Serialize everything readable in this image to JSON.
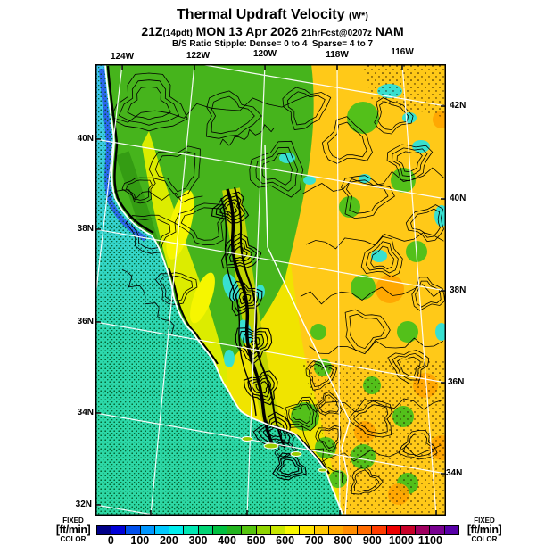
{
  "header": {
    "title": "Thermal Updraft Velocity ",
    "title_units": "(W*)",
    "t2_time": "21Z",
    "t2_local": "(14pdt)",
    "t2_date": " MON 13 Apr 2026 ",
    "t2_fcst": "21hrFcst@0207z",
    "t2_model": " NAM",
    "stipple_note": "B/S Ratio Stipple: Dense= 0 to 4  Sparse= 4 to 7"
  },
  "axes": {
    "top": [
      "124W",
      "122W",
      "120W",
      "118W",
      "116W"
    ],
    "left": [
      "40N",
      "38N",
      "36N",
      "34N",
      "32N"
    ],
    "right": [
      "42N",
      "40N",
      "38N",
      "36N",
      "34N"
    ]
  },
  "colorbar": {
    "label": [
      "FIXED",
      "[ft/min]",
      "COLOR"
    ],
    "ticks": [
      "0",
      "100",
      "200",
      "300",
      "400",
      "500",
      "600",
      "700",
      "800",
      "900",
      "1000",
      "1100"
    ],
    "colors": [
      "#000089",
      "#0000d8",
      "#0050ee",
      "#0096ff",
      "#00c8ff",
      "#00eeee",
      "#00e8b4",
      "#00d474",
      "#00c040",
      "#22b41e",
      "#55c40e",
      "#90d400",
      "#c8e600",
      "#f8f800",
      "#ffe400",
      "#ffc800",
      "#ffaa00",
      "#ff8c00",
      "#ff6a00",
      "#ff3c00",
      "#ee0000",
      "#c80028",
      "#a00060",
      "#780090",
      "#5800a8"
    ]
  },
  "chart_data": {
    "type": "heatmap",
    "title": "Thermal Updraft Velocity (W*)",
    "subtitle": "21Z(14pdt) MON 13 Apr 2026 21hrFcst@0207z NAM",
    "annotation": "B/S Ratio Stipple: Dense= 0 to 4  Sparse= 4 to 7",
    "units": "ft/min",
    "model": "NAM",
    "legend_position": "bottom",
    "grid": true,
    "x_tick_labels": [
      "124W",
      "122W",
      "120W",
      "118W",
      "116W"
    ],
    "y_tick_labels_left": [
      "40N",
      "38N",
      "36N",
      "34N",
      "32N"
    ],
    "y_tick_labels_right": [
      "42N",
      "40N",
      "38N",
      "36N",
      "34N"
    ],
    "color_scale": {
      "mode": "FIXED COLOR",
      "tick_values": [
        0,
        100,
        200,
        300,
        400,
        500,
        600,
        700,
        800,
        900,
        1000,
        1100
      ],
      "colors": [
        "#000089",
        "#0000d8",
        "#0050ee",
        "#0096ff",
        "#00c8ff",
        "#00eeee",
        "#00e8b4",
        "#00d474",
        "#00c040",
        "#22b41e",
        "#55c40e",
        "#90d400",
        "#c8e600",
        "#f8f800",
        "#ffe400",
        "#ffc800",
        "#ffaa00",
        "#ff8c00",
        "#ff6a00",
        "#ff3c00",
        "#ee0000",
        "#c80028",
        "#a00060",
        "#780090",
        "#5800a8"
      ]
    },
    "estimated_region_values_ftmin": {
      "pacific_ocean_north": 200,
      "pacific_ocean_south": 300,
      "north_coast_ranges": 450,
      "central_valley": 600,
      "sierra_nevada_band": 350,
      "nevada_basin": 700,
      "southeast_desert": 750
    }
  }
}
